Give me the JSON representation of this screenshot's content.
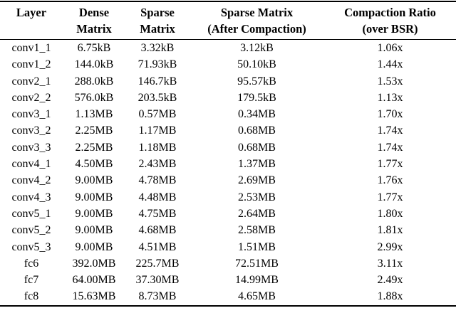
{
  "table": {
    "headers": [
      {
        "line1": "Layer",
        "line2": ""
      },
      {
        "line1": "Dense",
        "line2": "Matrix"
      },
      {
        "line1": "Sparse",
        "line2": "Matrix"
      },
      {
        "line1": "Sparse Matrix",
        "line2": "(After Compaction)"
      },
      {
        "line1": "Compaction Ratio",
        "line2": "(over BSR)"
      }
    ],
    "column_keys": [
      "layer",
      "dense-matrix",
      "sparse-matrix",
      "sparse-matrix-after-compaction",
      "compaction-ratio"
    ],
    "rows": [
      [
        "conv1_1",
        "6.75kB",
        "3.32kB",
        "3.12kB",
        "1.06x"
      ],
      [
        "conv1_2",
        "144.0kB",
        "71.93kB",
        "50.10kB",
        "1.44x"
      ],
      [
        "conv2_1",
        "288.0kB",
        "146.7kB",
        "95.57kB",
        "1.53x"
      ],
      [
        "conv2_2",
        "576.0kB",
        "203.5kB",
        "179.5kB",
        "1.13x"
      ],
      [
        "conv3_1",
        "1.13MB",
        "0.57MB",
        "0.34MB",
        "1.70x"
      ],
      [
        "conv3_2",
        "2.25MB",
        "1.17MB",
        "0.68MB",
        "1.74x"
      ],
      [
        "conv3_3",
        "2.25MB",
        "1.18MB",
        "0.68MB",
        "1.74x"
      ],
      [
        "conv4_1",
        "4.50MB",
        "2.43MB",
        "1.37MB",
        "1.77x"
      ],
      [
        "conv4_2",
        "9.00MB",
        "4.78MB",
        "2.69MB",
        "1.76x"
      ],
      [
        "conv4_3",
        "9.00MB",
        "4.48MB",
        "2.53MB",
        "1.77x"
      ],
      [
        "conv5_1",
        "9.00MB",
        "4.75MB",
        "2.64MB",
        "1.80x"
      ],
      [
        "conv5_2",
        "9.00MB",
        "4.68MB",
        "2.58MB",
        "1.81x"
      ],
      [
        "conv5_3",
        "9.00MB",
        "4.51MB",
        "1.51MB",
        "2.99x"
      ],
      [
        "fc6",
        "392.0MB",
        "225.7MB",
        "72.51MB",
        "3.11x"
      ],
      [
        "fc7",
        "64.00MB",
        "37.30MB",
        "14.99MB",
        "2.49x"
      ],
      [
        "fc8",
        "15.63MB",
        "8.73MB",
        "4.65MB",
        "1.88x"
      ]
    ]
  },
  "colors": {
    "text": "#000000",
    "background": "#ffffff",
    "rule": "#000000"
  }
}
